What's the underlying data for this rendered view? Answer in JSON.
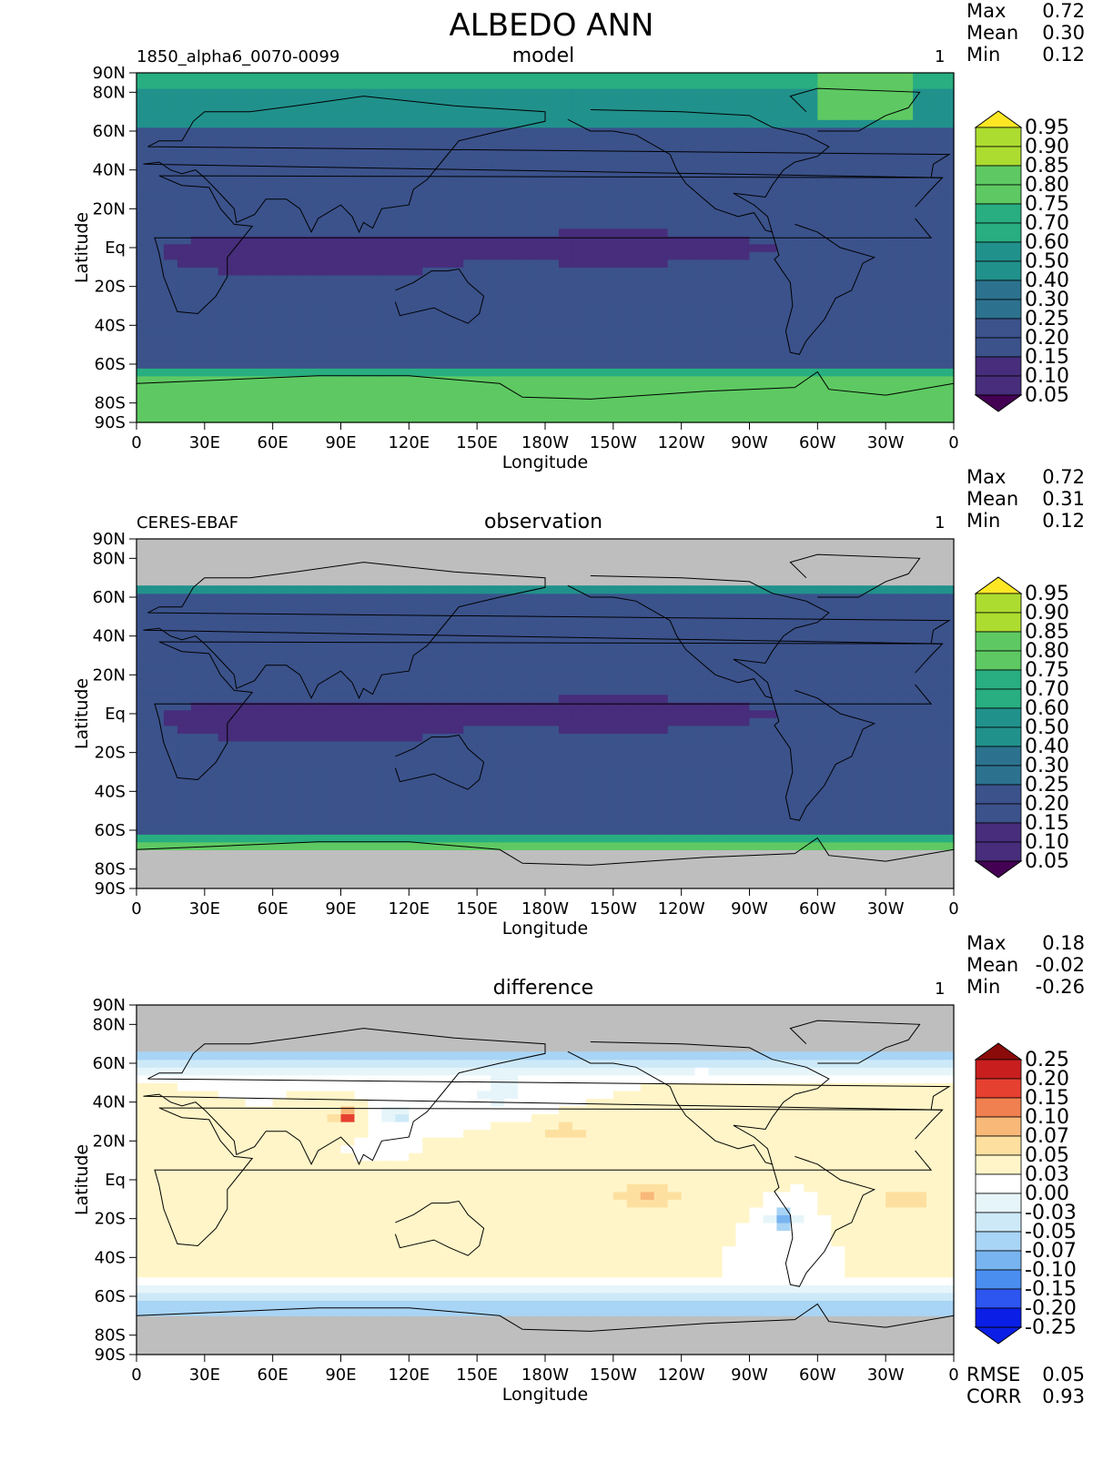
{
  "figure_title": "ALBEDO ANN",
  "panels": [
    {
      "left_label": "1850_alpha6_0070-0099",
      "center_label": "model",
      "right_label": "1",
      "stats": [
        {
          "k": "Max",
          "v": "0.72"
        },
        {
          "k": "Mean",
          "v": "0.30"
        },
        {
          "k": "Min",
          "v": "0.12"
        }
      ],
      "colorbar": [
        "0.95",
        "0.90",
        "0.85",
        "0.80",
        "0.75",
        "0.70",
        "0.60",
        "0.50",
        "0.40",
        "0.30",
        "0.25",
        "0.20",
        "0.15",
        "0.10",
        "0.05"
      ]
    },
    {
      "left_label": "CERES-EBAF",
      "center_label": "observation",
      "right_label": "1",
      "stats": [
        {
          "k": "Max",
          "v": "0.72"
        },
        {
          "k": "Mean",
          "v": "0.31"
        },
        {
          "k": "Min",
          "v": "0.12"
        }
      ],
      "colorbar": [
        "0.95",
        "0.90",
        "0.85",
        "0.80",
        "0.75",
        "0.70",
        "0.60",
        "0.50",
        "0.40",
        "0.30",
        "0.25",
        "0.20",
        "0.15",
        "0.10",
        "0.05"
      ]
    },
    {
      "left_label": "",
      "center_label": "difference",
      "right_label": "1",
      "stats": [
        {
          "k": "Max",
          "v": "0.18"
        },
        {
          "k": "Mean",
          "v": "-0.02"
        },
        {
          "k": "Min",
          "v": "-0.26"
        }
      ],
      "colorbar": [
        "0.25",
        "0.20",
        "0.15",
        "0.10",
        "0.07",
        "0.05",
        "0.03",
        "0.00",
        "-0.03",
        "-0.05",
        "-0.07",
        "-0.10",
        "-0.15",
        "-0.20",
        "-0.25"
      ],
      "extra_stats": [
        {
          "k": "RMSE",
          "v": "0.05"
        },
        {
          "k": "CORR",
          "v": "0.93"
        }
      ]
    }
  ],
  "colors": {
    "seq": [
      "#440154",
      "#472d7b",
      "#3b528b",
      "#2c728e",
      "#21918c",
      "#28ae80",
      "#5ec962",
      "#addc30",
      "#fde725"
    ],
    "div": [
      "#0a1ee6",
      "#2d55f0",
      "#4a8ef0",
      "#78b4f0",
      "#a8d4f5",
      "#cde9f8",
      "#e6f5fa",
      "#ffffff",
      "#fff5c8",
      "#fde0a0",
      "#f8b878",
      "#f08050",
      "#e64030",
      "#c81e1e",
      "#8b0a0a"
    ],
    "missing": "#bebebe"
  },
  "chart_data": [
    {
      "type": "heatmap",
      "title": "model",
      "xlabel": "Longitude",
      "ylabel": "Latitude",
      "x_ticks": [
        "0",
        "30E",
        "60E",
        "90E",
        "120E",
        "150E",
        "180W",
        "150W",
        "120W",
        "90W",
        "60W",
        "30W",
        "0"
      ],
      "y_ticks": [
        "90N",
        "80N",
        "60N",
        "40N",
        "20N",
        "Eq",
        "20S",
        "40S",
        "60S",
        "80S",
        "90S"
      ],
      "y_tick_values": [
        90,
        80,
        60,
        40,
        20,
        0,
        -20,
        -40,
        -60,
        -80,
        -90
      ],
      "xlim": [
        0,
        360
      ],
      "ylim": [
        -90,
        90
      ],
      "levels": [
        0.05,
        0.1,
        0.15,
        0.2,
        0.25,
        0.3,
        0.4,
        0.5,
        0.6,
        0.7,
        0.75,
        0.8,
        0.85,
        0.9,
        0.95
      ],
      "max": 0.72,
      "mean": 0.3,
      "min": 0.12
    },
    {
      "type": "heatmap",
      "title": "observation",
      "xlabel": "Longitude",
      "ylabel": "Latitude",
      "x_ticks": [
        "0",
        "30E",
        "60E",
        "90E",
        "120E",
        "150E",
        "180W",
        "150W",
        "120W",
        "90W",
        "60W",
        "30W",
        "0"
      ],
      "y_ticks": [
        "90N",
        "80N",
        "60N",
        "40N",
        "20N",
        "Eq",
        "20S",
        "40S",
        "60S",
        "80S",
        "90S"
      ],
      "y_tick_values": [
        90,
        80,
        60,
        40,
        20,
        0,
        -20,
        -40,
        -60,
        -80,
        -90
      ],
      "xlim": [
        0,
        360
      ],
      "ylim": [
        -90,
        90
      ],
      "levels": [
        0.05,
        0.1,
        0.15,
        0.2,
        0.25,
        0.3,
        0.4,
        0.5,
        0.6,
        0.7,
        0.75,
        0.8,
        0.85,
        0.9,
        0.95
      ],
      "max": 0.72,
      "mean": 0.31,
      "min": 0.12
    },
    {
      "type": "heatmap",
      "title": "difference",
      "xlabel": "Longitude",
      "ylabel": "Latitude",
      "x_ticks": [
        "0",
        "30E",
        "60E",
        "90E",
        "120E",
        "150E",
        "180W",
        "150W",
        "120W",
        "90W",
        "60W",
        "30W",
        "0"
      ],
      "y_ticks": [
        "90N",
        "80N",
        "60N",
        "40N",
        "20N",
        "Eq",
        "20S",
        "40S",
        "60S",
        "80S",
        "90S"
      ],
      "y_tick_values": [
        90,
        80,
        60,
        40,
        20,
        0,
        -20,
        -40,
        -60,
        -80,
        -90
      ],
      "xlim": [
        0,
        360
      ],
      "ylim": [
        -90,
        90
      ],
      "levels": [
        -0.25,
        -0.2,
        -0.15,
        -0.1,
        -0.07,
        -0.05,
        -0.03,
        0.0,
        0.03,
        0.05,
        0.07,
        0.1,
        0.15,
        0.2,
        0.25
      ],
      "max": 0.18,
      "mean": -0.02,
      "min": -0.26,
      "rmse": 0.05,
      "corr": 0.93
    }
  ]
}
